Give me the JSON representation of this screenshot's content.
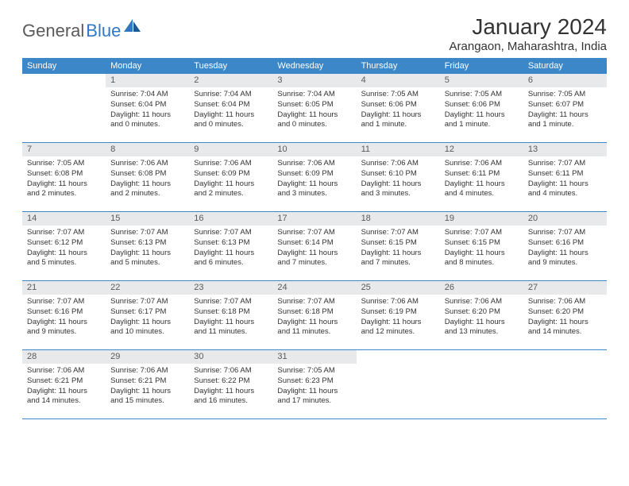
{
  "brand": {
    "part1": "General",
    "part2": "Blue"
  },
  "title": "January 2024",
  "location": "Arangaon, Maharashtra, India",
  "colors": {
    "header_blue": "#3b87c8",
    "daynum_bg": "#e8e9ea",
    "text": "#333333",
    "logo_gray": "#5a5a5a",
    "logo_blue": "#2f78c4"
  },
  "dow": [
    "Sunday",
    "Monday",
    "Tuesday",
    "Wednesday",
    "Thursday",
    "Friday",
    "Saturday"
  ],
  "weeks": [
    [
      null,
      {
        "n": "1",
        "sr": "7:04 AM",
        "ss": "6:04 PM",
        "dl": "11 hours and 0 minutes."
      },
      {
        "n": "2",
        "sr": "7:04 AM",
        "ss": "6:04 PM",
        "dl": "11 hours and 0 minutes."
      },
      {
        "n": "3",
        "sr": "7:04 AM",
        "ss": "6:05 PM",
        "dl": "11 hours and 0 minutes."
      },
      {
        "n": "4",
        "sr": "7:05 AM",
        "ss": "6:06 PM",
        "dl": "11 hours and 1 minute."
      },
      {
        "n": "5",
        "sr": "7:05 AM",
        "ss": "6:06 PM",
        "dl": "11 hours and 1 minute."
      },
      {
        "n": "6",
        "sr": "7:05 AM",
        "ss": "6:07 PM",
        "dl": "11 hours and 1 minute."
      }
    ],
    [
      {
        "n": "7",
        "sr": "7:05 AM",
        "ss": "6:08 PM",
        "dl": "11 hours and 2 minutes."
      },
      {
        "n": "8",
        "sr": "7:06 AM",
        "ss": "6:08 PM",
        "dl": "11 hours and 2 minutes."
      },
      {
        "n": "9",
        "sr": "7:06 AM",
        "ss": "6:09 PM",
        "dl": "11 hours and 2 minutes."
      },
      {
        "n": "10",
        "sr": "7:06 AM",
        "ss": "6:09 PM",
        "dl": "11 hours and 3 minutes."
      },
      {
        "n": "11",
        "sr": "7:06 AM",
        "ss": "6:10 PM",
        "dl": "11 hours and 3 minutes."
      },
      {
        "n": "12",
        "sr": "7:06 AM",
        "ss": "6:11 PM",
        "dl": "11 hours and 4 minutes."
      },
      {
        "n": "13",
        "sr": "7:07 AM",
        "ss": "6:11 PM",
        "dl": "11 hours and 4 minutes."
      }
    ],
    [
      {
        "n": "14",
        "sr": "7:07 AM",
        "ss": "6:12 PM",
        "dl": "11 hours and 5 minutes."
      },
      {
        "n": "15",
        "sr": "7:07 AM",
        "ss": "6:13 PM",
        "dl": "11 hours and 5 minutes."
      },
      {
        "n": "16",
        "sr": "7:07 AM",
        "ss": "6:13 PM",
        "dl": "11 hours and 6 minutes."
      },
      {
        "n": "17",
        "sr": "7:07 AM",
        "ss": "6:14 PM",
        "dl": "11 hours and 7 minutes."
      },
      {
        "n": "18",
        "sr": "7:07 AM",
        "ss": "6:15 PM",
        "dl": "11 hours and 7 minutes."
      },
      {
        "n": "19",
        "sr": "7:07 AM",
        "ss": "6:15 PM",
        "dl": "11 hours and 8 minutes."
      },
      {
        "n": "20",
        "sr": "7:07 AM",
        "ss": "6:16 PM",
        "dl": "11 hours and 9 minutes."
      }
    ],
    [
      {
        "n": "21",
        "sr": "7:07 AM",
        "ss": "6:16 PM",
        "dl": "11 hours and 9 minutes."
      },
      {
        "n": "22",
        "sr": "7:07 AM",
        "ss": "6:17 PM",
        "dl": "11 hours and 10 minutes."
      },
      {
        "n": "23",
        "sr": "7:07 AM",
        "ss": "6:18 PM",
        "dl": "11 hours and 11 minutes."
      },
      {
        "n": "24",
        "sr": "7:07 AM",
        "ss": "6:18 PM",
        "dl": "11 hours and 11 minutes."
      },
      {
        "n": "25",
        "sr": "7:06 AM",
        "ss": "6:19 PM",
        "dl": "11 hours and 12 minutes."
      },
      {
        "n": "26",
        "sr": "7:06 AM",
        "ss": "6:20 PM",
        "dl": "11 hours and 13 minutes."
      },
      {
        "n": "27",
        "sr": "7:06 AM",
        "ss": "6:20 PM",
        "dl": "11 hours and 14 minutes."
      }
    ],
    [
      {
        "n": "28",
        "sr": "7:06 AM",
        "ss": "6:21 PM",
        "dl": "11 hours and 14 minutes."
      },
      {
        "n": "29",
        "sr": "7:06 AM",
        "ss": "6:21 PM",
        "dl": "11 hours and 15 minutes."
      },
      {
        "n": "30",
        "sr": "7:06 AM",
        "ss": "6:22 PM",
        "dl": "11 hours and 16 minutes."
      },
      {
        "n": "31",
        "sr": "7:05 AM",
        "ss": "6:23 PM",
        "dl": "11 hours and 17 minutes."
      },
      null,
      null,
      null
    ]
  ],
  "labels": {
    "sunrise": "Sunrise:",
    "sunset": "Sunset:",
    "daylight": "Daylight:"
  }
}
